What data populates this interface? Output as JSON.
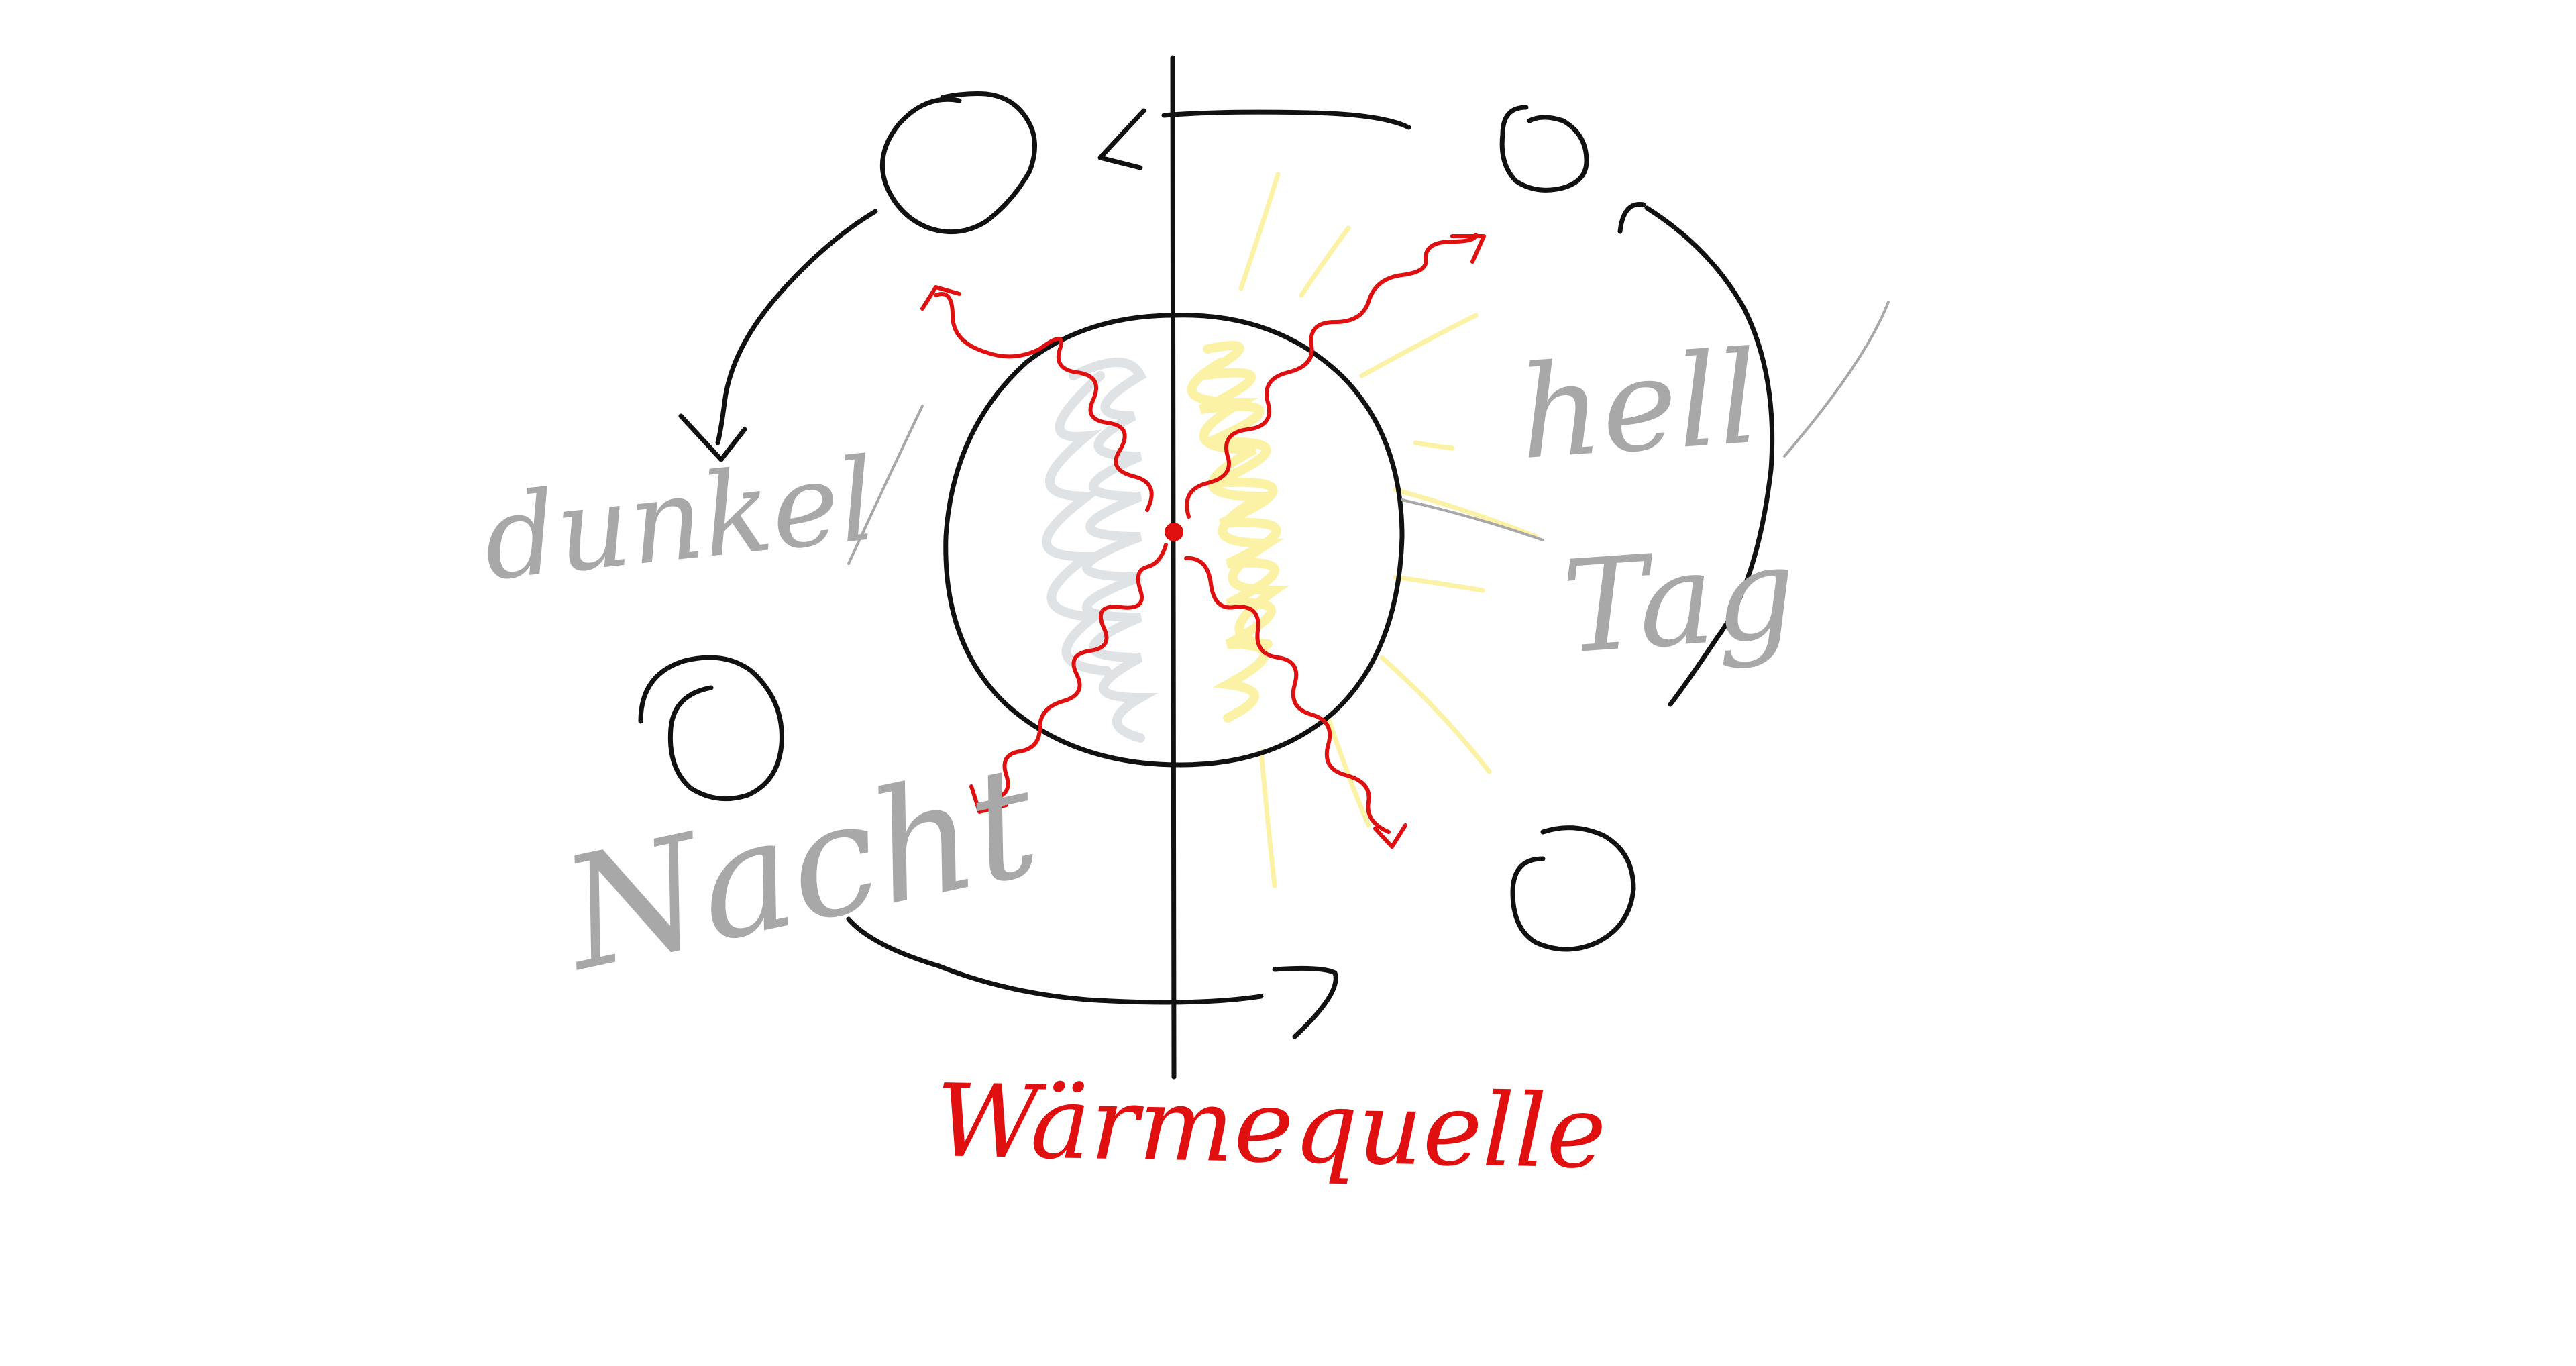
{
  "diagram": {
    "labels": {
      "dunkel": "dunkel",
      "hell": "hell",
      "tag": "Tag",
      "nacht": "Nacht",
      "heat_source": "Wärmequelle"
    },
    "colors": {
      "ink": "#111111",
      "pencil": "#a8a8a8",
      "heat": "#e01010",
      "light_fill": "#fbf2a6",
      "shadow_fill": "#dfe3e6"
    }
  }
}
